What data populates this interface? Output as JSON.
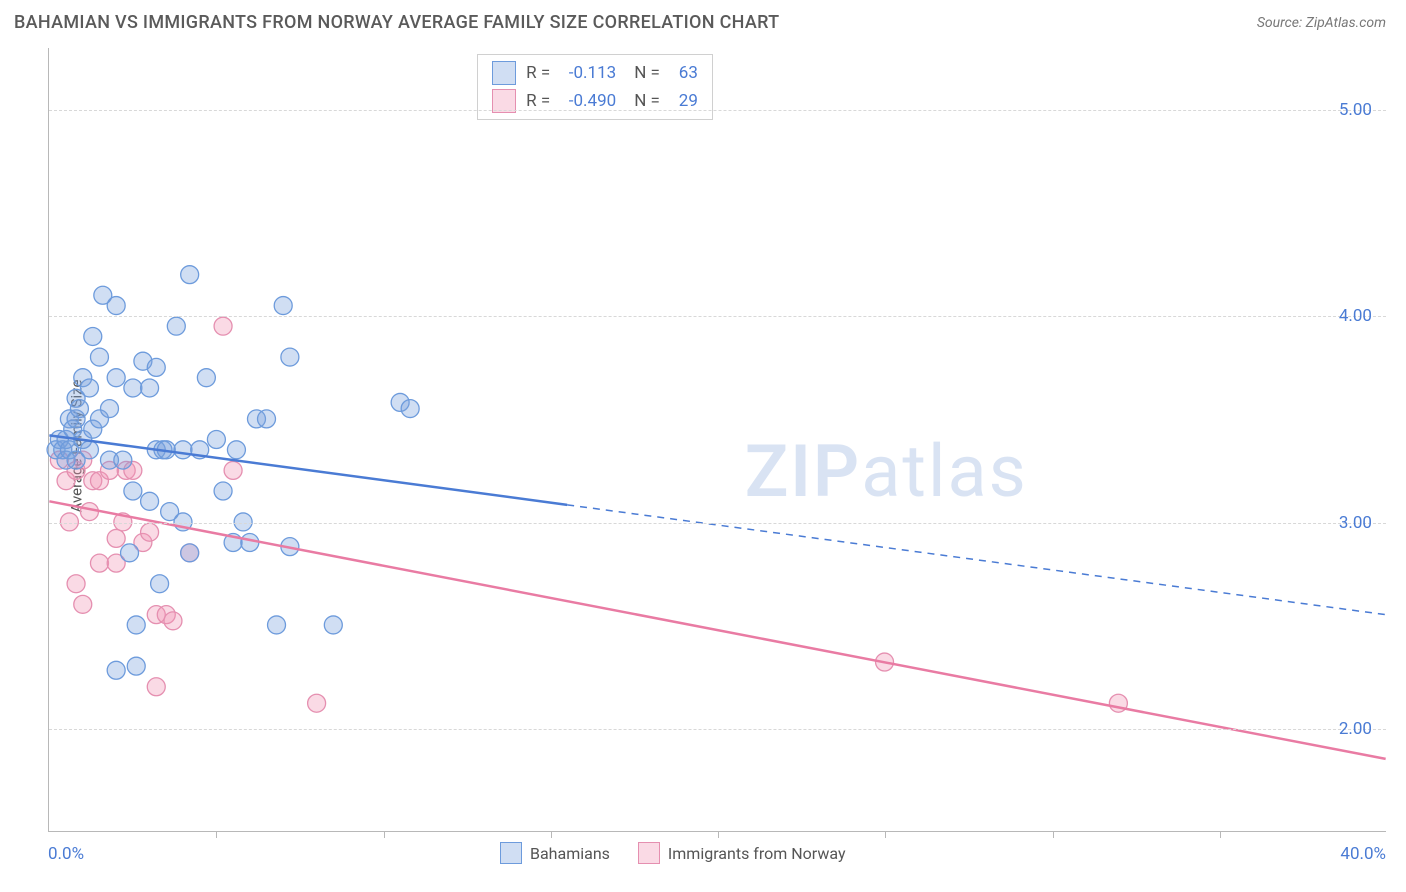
{
  "header": {
    "title": "BAHAMIAN VS IMMIGRANTS FROM NORWAY AVERAGE FAMILY SIZE CORRELATION CHART",
    "source": "Source: ZipAtlas.com"
  },
  "chart": {
    "type": "scatter",
    "ylabel": "Average Family Size",
    "xlim": [
      0,
      40
    ],
    "ylim": [
      1.5,
      5.3
    ],
    "yticks": [
      2.0,
      3.0,
      4.0,
      5.0
    ],
    "ytick_labels": [
      "2.00",
      "3.00",
      "4.00",
      "5.00"
    ],
    "xticks": [
      5,
      10,
      15,
      20,
      25,
      30,
      35
    ],
    "xlabel_min": "0.0%",
    "xlabel_max": "40.0%",
    "background_color": "#ffffff",
    "grid_color": "#d8d8d8",
    "axis_color": "#b8b8b8",
    "tick_label_color": "#4a7bd4",
    "label_fontsize": 15,
    "tick_fontsize": 17,
    "marker_radius": 9,
    "marker_opacity": 0.35,
    "line_width": 2.5,
    "watermark": "ZIPatlas",
    "watermark_color": "#d9e3f3",
    "series": {
      "blue": {
        "name": "Bahamians",
        "color": "#4a7bd4",
        "fill": "rgba(120,160,220,0.35)",
        "stroke": "#6d9bdc",
        "R": "-0.113",
        "N": "63",
        "trend": {
          "x1": 0,
          "y1": 3.42,
          "x2": 40,
          "y2": 2.55,
          "solid_until_x": 15.5
        },
        "points": [
          [
            0.2,
            3.35
          ],
          [
            0.3,
            3.4
          ],
          [
            0.4,
            3.35
          ],
          [
            0.5,
            3.4
          ],
          [
            0.5,
            3.3
          ],
          [
            0.6,
            3.5
          ],
          [
            0.6,
            3.35
          ],
          [
            0.7,
            3.45
          ],
          [
            0.8,
            3.6
          ],
          [
            0.8,
            3.3
          ],
          [
            0.8,
            3.5
          ],
          [
            0.9,
            3.55
          ],
          [
            1.0,
            3.7
          ],
          [
            1.0,
            3.4
          ],
          [
            1.2,
            3.65
          ],
          [
            1.2,
            3.35
          ],
          [
            1.3,
            3.9
          ],
          [
            1.3,
            3.45
          ],
          [
            1.5,
            3.8
          ],
          [
            1.5,
            3.5
          ],
          [
            1.6,
            4.1
          ],
          [
            1.8,
            3.55
          ],
          [
            1.8,
            3.3
          ],
          [
            2.0,
            3.7
          ],
          [
            2.0,
            4.05
          ],
          [
            2.0,
            2.28
          ],
          [
            2.2,
            3.3
          ],
          [
            2.4,
            2.85
          ],
          [
            2.5,
            3.65
          ],
          [
            2.5,
            3.15
          ],
          [
            2.6,
            2.5
          ],
          [
            2.6,
            2.3
          ],
          [
            2.8,
            3.78
          ],
          [
            3.0,
            3.65
          ],
          [
            3.0,
            3.1
          ],
          [
            3.2,
            3.75
          ],
          [
            3.2,
            3.35
          ],
          [
            3.3,
            2.7
          ],
          [
            3.4,
            3.35
          ],
          [
            3.5,
            3.35
          ],
          [
            3.6,
            3.05
          ],
          [
            3.8,
            3.95
          ],
          [
            4.0,
            3.0
          ],
          [
            4.0,
            3.35
          ],
          [
            4.2,
            2.85
          ],
          [
            4.2,
            4.2
          ],
          [
            4.5,
            3.35
          ],
          [
            4.7,
            3.7
          ],
          [
            5.0,
            3.4
          ],
          [
            5.2,
            3.15
          ],
          [
            5.5,
            2.9
          ],
          [
            5.6,
            3.35
          ],
          [
            5.8,
            3.0
          ],
          [
            6.0,
            2.9
          ],
          [
            6.2,
            3.5
          ],
          [
            6.5,
            3.5
          ],
          [
            6.8,
            2.5
          ],
          [
            7.0,
            4.05
          ],
          [
            7.2,
            2.88
          ],
          [
            7.2,
            3.8
          ],
          [
            8.5,
            2.5
          ],
          [
            10.5,
            3.58
          ],
          [
            10.8,
            3.55
          ]
        ]
      },
      "pink": {
        "name": "Immigrants from Norway",
        "color": "#e97ba3",
        "fill": "rgba(240,150,180,0.35)",
        "stroke": "#e58fb0",
        "R": "-0.490",
        "N": "29",
        "trend": {
          "x1": 0,
          "y1": 3.1,
          "x2": 40,
          "y2": 1.85,
          "solid_until_x": 40
        },
        "points": [
          [
            0.3,
            3.3
          ],
          [
            0.5,
            3.2
          ],
          [
            0.6,
            3.0
          ],
          [
            0.8,
            3.25
          ],
          [
            0.8,
            2.7
          ],
          [
            1.0,
            3.3
          ],
          [
            1.0,
            2.6
          ],
          [
            1.2,
            3.05
          ],
          [
            1.3,
            3.2
          ],
          [
            1.5,
            3.2
          ],
          [
            1.5,
            2.8
          ],
          [
            1.8,
            3.25
          ],
          [
            2.0,
            2.92
          ],
          [
            2.0,
            2.8
          ],
          [
            2.2,
            3.0
          ],
          [
            2.3,
            3.25
          ],
          [
            2.5,
            3.25
          ],
          [
            2.8,
            2.9
          ],
          [
            3.0,
            2.95
          ],
          [
            3.2,
            2.55
          ],
          [
            3.2,
            2.2
          ],
          [
            3.5,
            2.55
          ],
          [
            3.7,
            2.52
          ],
          [
            4.2,
            2.85
          ],
          [
            5.2,
            3.95
          ],
          [
            5.5,
            3.25
          ],
          [
            8.0,
            2.12
          ],
          [
            25.0,
            2.32
          ],
          [
            32.0,
            2.12
          ]
        ]
      }
    },
    "legend_top": {
      "r_label": "R =",
      "n_label": "N ="
    }
  }
}
